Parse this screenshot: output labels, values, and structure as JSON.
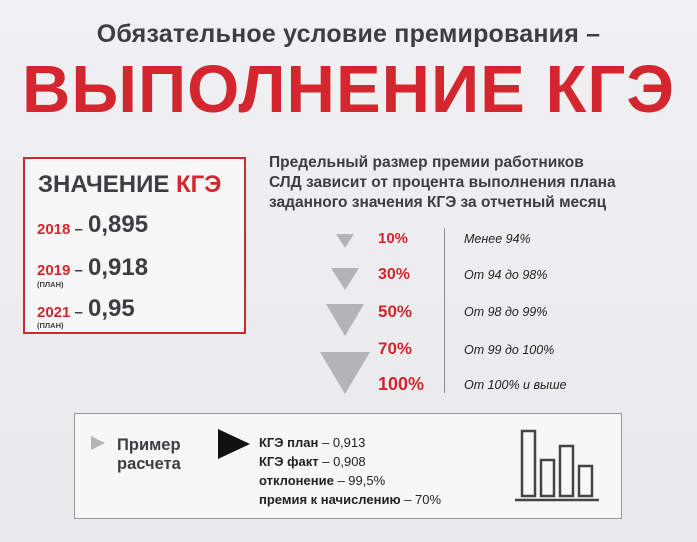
{
  "header": {
    "subtitle": "Обязательное условие премирования –",
    "title": "ВЫПОЛНЕНИЕ КГЭ"
  },
  "kge_values": {
    "heading_main": "ЗНАЧЕНИЕ",
    "heading_accent": "КГЭ",
    "rows": [
      {
        "year": "2018",
        "dash": "–",
        "note": "",
        "value": "0,895"
      },
      {
        "year": "2019",
        "dash": "–",
        "note": "(ПЛАН)",
        "value": "0,918"
      },
      {
        "year": "2021",
        "dash": "–",
        "note": "(ПЛАН)",
        "value": "0,95"
      }
    ]
  },
  "description": {
    "lines": [
      "Предельный размер премии работников",
      "СЛД зависит от процента выполнения плана",
      "заданного значения КГЭ за отчетный месяц"
    ]
  },
  "bonus_scale": [
    {
      "percent": "10%",
      "range": "Менее 94%"
    },
    {
      "percent": "30%",
      "range": "От 94 до 98%"
    },
    {
      "percent": "50%",
      "range": "От 98 до 99%"
    },
    {
      "percent": "70%",
      "range": "От 99 до 100%"
    },
    {
      "percent": "100%",
      "range": "От 100% и выше"
    }
  ],
  "example": {
    "label_line1": "Пример",
    "label_line2": "расчета",
    "lines": [
      {
        "key": "КГЭ план",
        "value": "– 0,913"
      },
      {
        "key": "КГЭ факт",
        "value": "– 0,908"
      },
      {
        "key": "отклонение",
        "value": "– 99,5%"
      },
      {
        "key": "премия к начислению",
        "value": "– 70%"
      }
    ]
  },
  "colors": {
    "accent_red": "#d4262e",
    "dark_text": "#3e3e42",
    "triangle_gray": "#b4b4b8"
  },
  "icons": [
    "small-triangle-arrow-icon",
    "black-triangle-arrow-icon",
    "bar-chart-icon"
  ]
}
